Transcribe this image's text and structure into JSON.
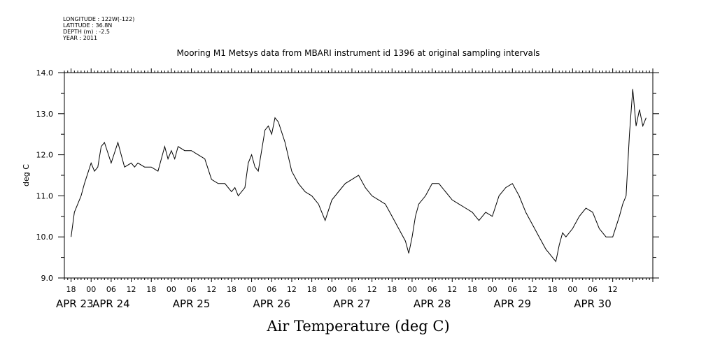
{
  "header": {
    "meta_lines": [
      "LONGITUDE : 122W(-122)",
      "LATITUDE : 36.8N",
      "DEPTH (m) : -2.5",
      "YEAR : 2011"
    ],
    "title": "Mooring M1 Metsys data from MBARI instrument id 1396 at original sampling intervals"
  },
  "chart_data": {
    "type": "line",
    "title": "Mooring M1 Metsys data from MBARI instrument id 1396 at original sampling intervals",
    "xlabel": "Air Temperature (deg C)",
    "ylabel": "deg C",
    "ylim": [
      9.0,
      14.0
    ],
    "yticks": [
      "9.0",
      "10.0",
      "11.0",
      "12.0",
      "13.0",
      "14.0"
    ],
    "xlim": [
      "2011-04-23T10:00",
      "2011-04-30T18:00"
    ],
    "x_hour_ticks": [
      "18",
      "00",
      "06",
      "12",
      "18",
      "00",
      "06",
      "12",
      "18",
      "00",
      "06",
      "12",
      "18",
      "00",
      "06",
      "12",
      "18",
      "00",
      "06",
      "12",
      "18",
      "00",
      "06",
      "12",
      "18",
      "00",
      "06",
      "12"
    ],
    "x_date_labels": [
      "APR 23",
      "APR 24",
      "APR 25",
      "APR 26",
      "APR 27",
      "APR 28",
      "APR 29",
      "APR 30"
    ],
    "grid": false,
    "series": [
      {
        "color": "#000000",
        "x": [
          "2011-04-23T12:00",
          "2011-04-23T13:00",
          "2011-04-23T14:00",
          "2011-04-23T15:00",
          "2011-04-23T16:00",
          "2011-04-23T18:00",
          "2011-04-23T19:00",
          "2011-04-23T20:00",
          "2011-04-23T21:00",
          "2011-04-23T22:00",
          "2011-04-24T00:00",
          "2011-04-24T02:00",
          "2011-04-24T03:00",
          "2011-04-24T04:00",
          "2011-04-24T06:00",
          "2011-04-24T07:00",
          "2011-04-24T08:00",
          "2011-04-24T10:00",
          "2011-04-24T12:00",
          "2011-04-24T14:00",
          "2011-04-24T16:00",
          "2011-04-24T17:00",
          "2011-04-24T18:00",
          "2011-04-24T19:00",
          "2011-04-24T20:00",
          "2011-04-24T22:00",
          "2011-04-25T00:00",
          "2011-04-25T02:00",
          "2011-04-25T04:00",
          "2011-04-25T06:00",
          "2011-04-25T08:00",
          "2011-04-25T10:00",
          "2011-04-25T12:00",
          "2011-04-25T13:00",
          "2011-04-25T14:00",
          "2011-04-25T16:00",
          "2011-04-25T17:00",
          "2011-04-25T18:00",
          "2011-04-25T19:00",
          "2011-04-25T20:00",
          "2011-04-25T22:00",
          "2011-04-25T23:00",
          "2011-04-26T00:00",
          "2011-04-26T01:00",
          "2011-04-26T02:00",
          "2011-04-26T04:00",
          "2011-04-26T06:00",
          "2011-04-26T08:00",
          "2011-04-26T10:00",
          "2011-04-26T12:00",
          "2011-04-26T14:00",
          "2011-04-26T15:00",
          "2011-04-26T16:00",
          "2011-04-26T18:00",
          "2011-04-26T20:00",
          "2011-04-26T22:00",
          "2011-04-27T00:00",
          "2011-04-27T02:00",
          "2011-04-27T04:00",
          "2011-04-27T06:00",
          "2011-04-27T08:00",
          "2011-04-27T10:00",
          "2011-04-27T12:00",
          "2011-04-27T14:00",
          "2011-04-27T16:00",
          "2011-04-27T17:00",
          "2011-04-27T18:00",
          "2011-04-27T19:00",
          "2011-04-27T20:00",
          "2011-04-27T22:00",
          "2011-04-28T00:00",
          "2011-04-28T02:00",
          "2011-04-28T04:00",
          "2011-04-28T06:00",
          "2011-04-28T08:00",
          "2011-04-28T10:00",
          "2011-04-28T12:00",
          "2011-04-28T13:00",
          "2011-04-28T14:00",
          "2011-04-28T16:00",
          "2011-04-28T18:00",
          "2011-04-28T20:00",
          "2011-04-28T22:00",
          "2011-04-29T00:00",
          "2011-04-29T02:00",
          "2011-04-29T04:00",
          "2011-04-29T06:00",
          "2011-04-29T08:00",
          "2011-04-29T10:00",
          "2011-04-29T12:00",
          "2011-04-29T13:00",
          "2011-04-29T14:00",
          "2011-04-29T15:00",
          "2011-04-29T16:00",
          "2011-04-29T18:00",
          "2011-04-29T20:00",
          "2011-04-29T22:00",
          "2011-04-30T00:00",
          "2011-04-30T02:00",
          "2011-04-30T04:00",
          "2011-04-30T06:00",
          "2011-04-30T08:00",
          "2011-04-30T09:00",
          "2011-04-30T10:00",
          "2011-04-30T11:00",
          "2011-04-30T12:00",
          "2011-04-30T13:00",
          "2011-04-30T14:00",
          "2011-04-30T15:00",
          "2011-04-30T16:00"
        ],
        "y": [
          10.0,
          10.6,
          10.8,
          11.0,
          11.3,
          11.8,
          11.6,
          11.7,
          12.2,
          12.3,
          11.8,
          12.3,
          12.0,
          11.7,
          11.8,
          11.7,
          11.8,
          11.7,
          11.7,
          11.6,
          12.2,
          11.9,
          12.1,
          11.9,
          12.2,
          12.1,
          12.1,
          12.0,
          11.9,
          11.4,
          11.3,
          11.3,
          11.1,
          11.2,
          11.0,
          11.2,
          11.8,
          12.0,
          11.7,
          11.6,
          12.6,
          12.7,
          12.5,
          12.9,
          12.8,
          12.3,
          11.6,
          11.3,
          11.1,
          11.0,
          10.8,
          10.6,
          10.4,
          10.9,
          11.1,
          11.3,
          11.4,
          11.5,
          11.2,
          11.0,
          10.9,
          10.8,
          10.5,
          10.2,
          9.9,
          9.6,
          10.0,
          10.5,
          10.8,
          11.0,
          11.3,
          11.3,
          11.1,
          10.9,
          10.8,
          10.7,
          10.6,
          10.5,
          10.4,
          10.6,
          10.5,
          11.0,
          11.2,
          11.3,
          11.0,
          10.6,
          10.3,
          10.0,
          9.7,
          9.5,
          9.4,
          9.8,
          10.1,
          10.0,
          10.2,
          10.5,
          10.7,
          10.6,
          10.2,
          10.0,
          10.0,
          10.5,
          10.8,
          11.0,
          12.5,
          13.6,
          12.7,
          13.1,
          12.7,
          12.9
        ]
      }
    ]
  }
}
